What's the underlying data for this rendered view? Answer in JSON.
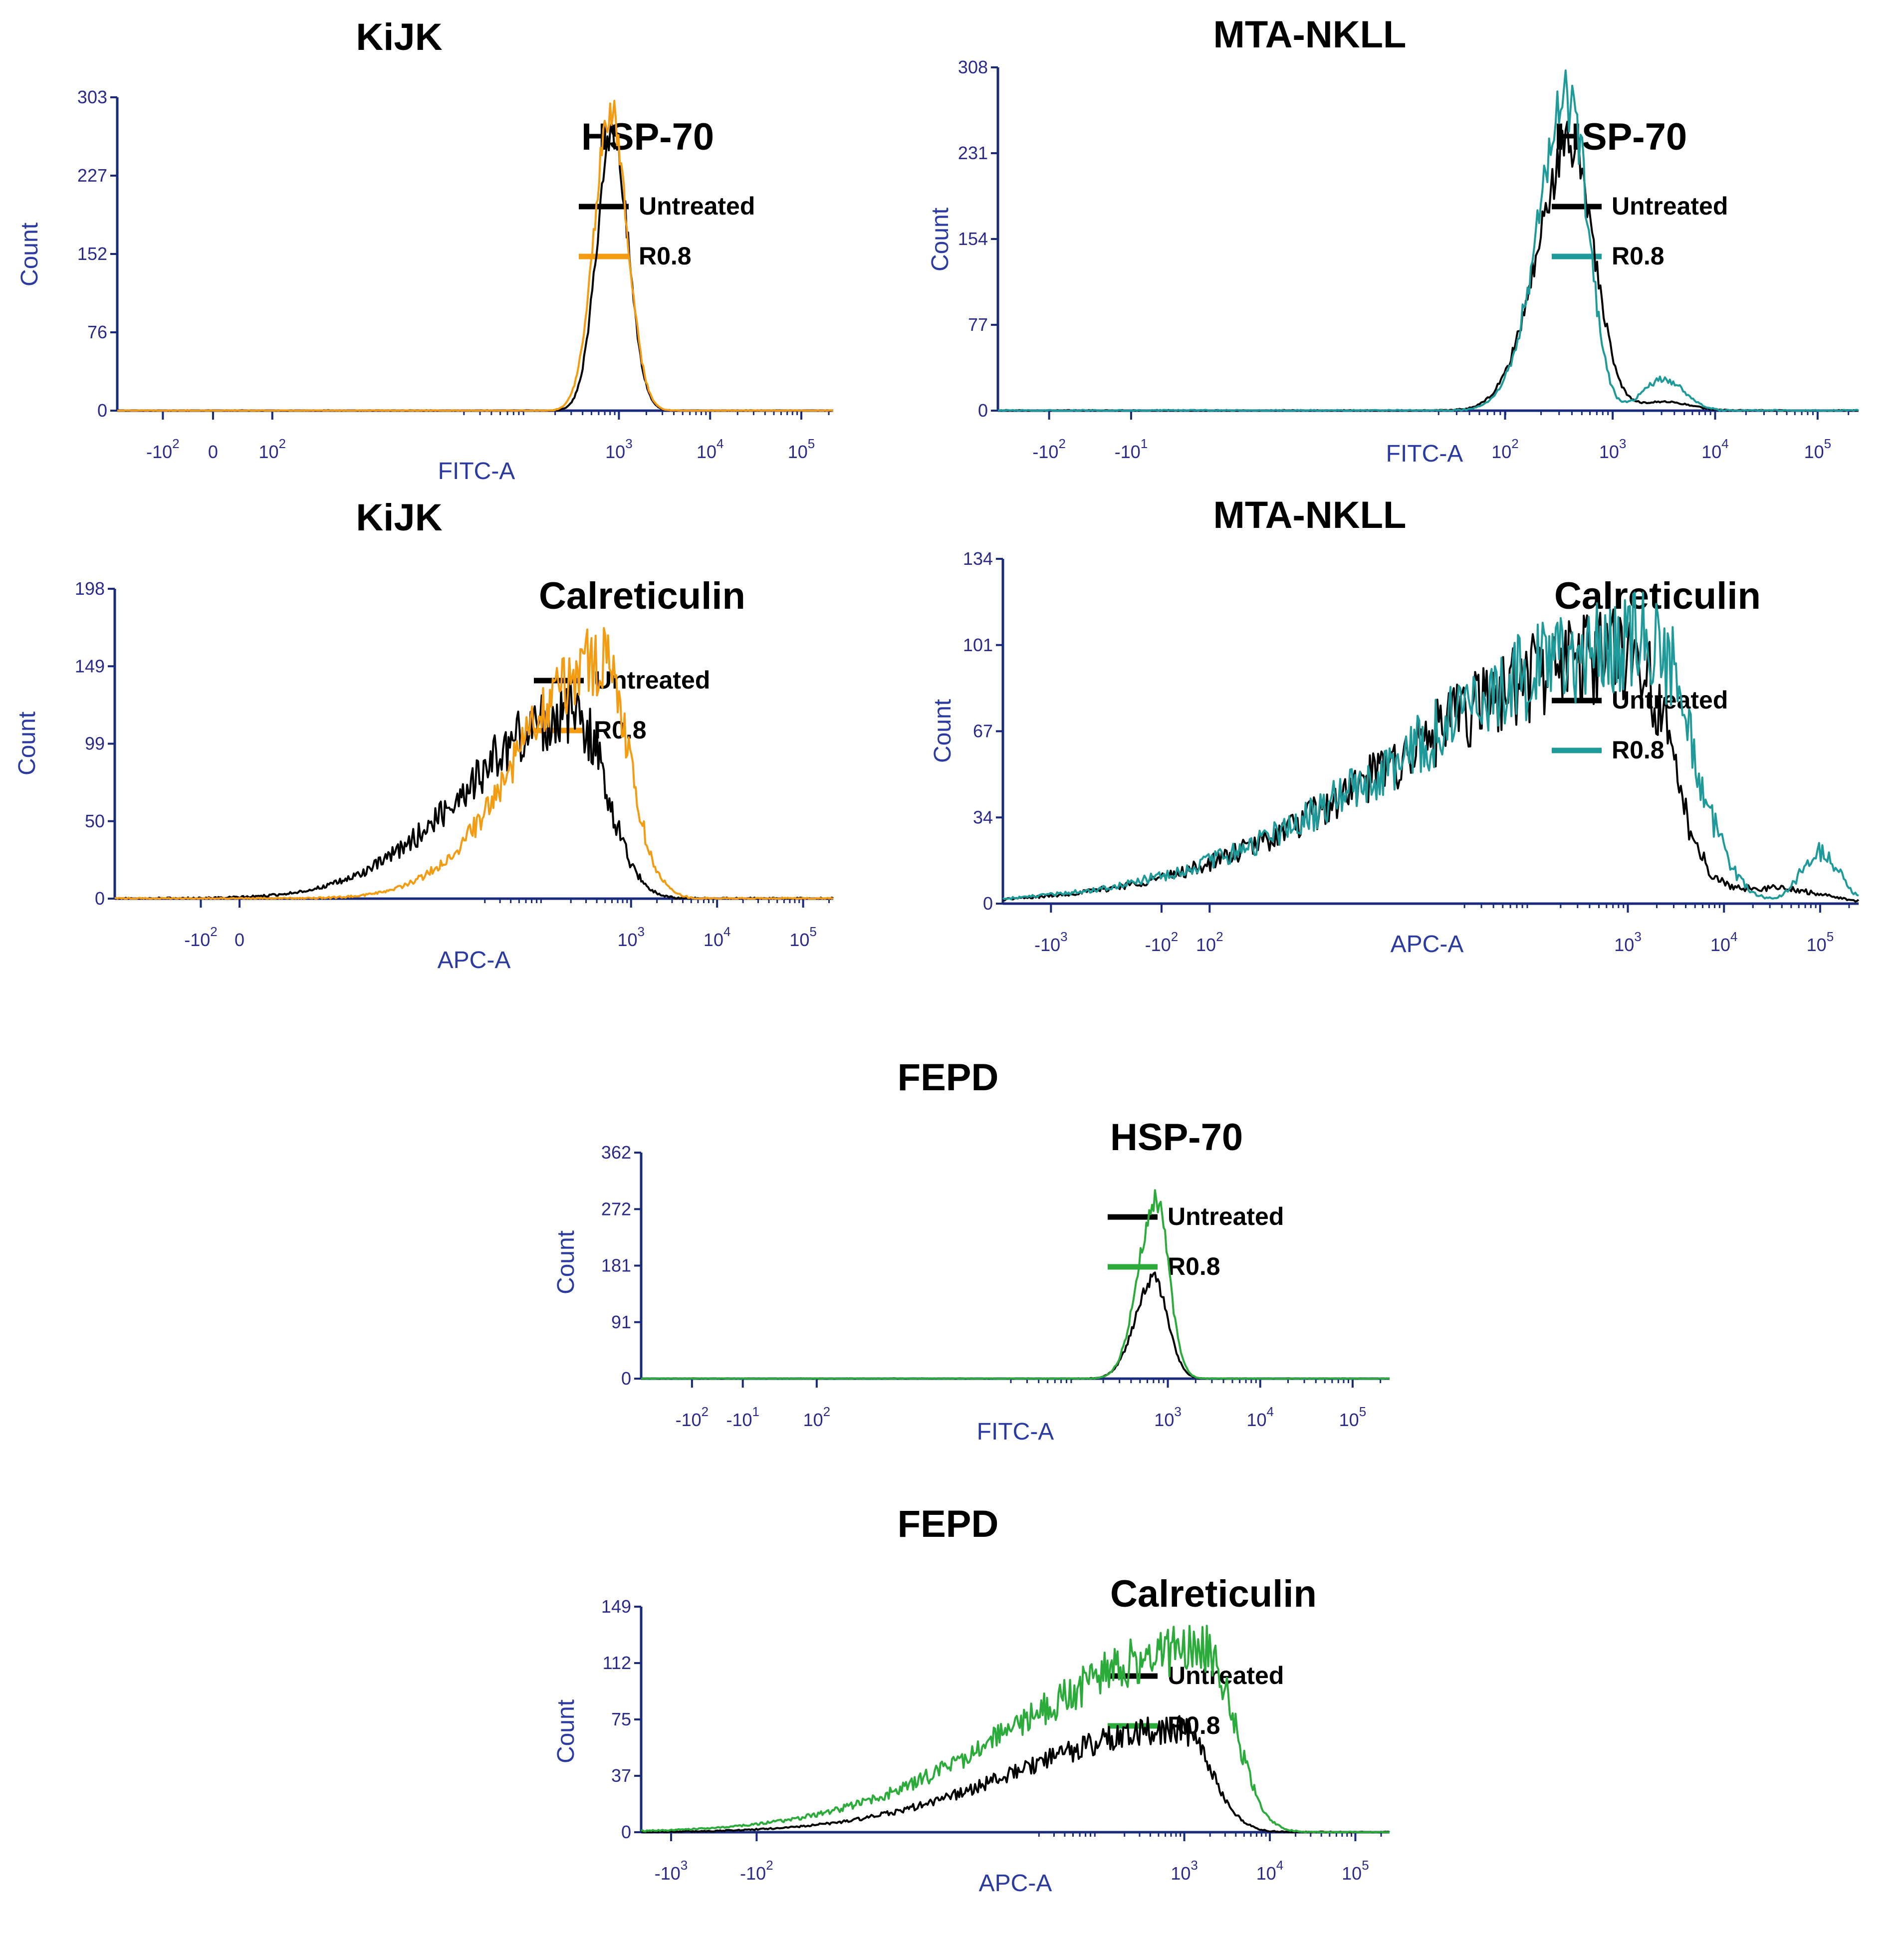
{
  "colors": {
    "untreated": "#000000",
    "orange": "#f39c12",
    "teal": "#1e9a9a",
    "green": "#2bab3a",
    "axis": "#1a2a7a",
    "tick_text": "#2a2a8a",
    "axis_label": "#2a3aa0"
  },
  "legend": {
    "untreated_label": "Untreated",
    "treated_label": "R0.8"
  },
  "chart_data": [
    {
      "id": "kijk_hsp70",
      "type": "histogram",
      "title": "KiJK",
      "marker": "HSP-70",
      "xlabel": "FITC-A",
      "ylabel": "Count",
      "ylim": [
        0,
        303
      ],
      "yticks": [
        "0",
        "76",
        "152",
        "227",
        "303"
      ],
      "xrange_log": [
        -2.5,
        5.35
      ],
      "xticks": [
        {
          "label": "-10",
          "exp": "2",
          "at": -2.0
        },
        {
          "label": "0",
          "exp": "",
          "at": -1.45
        },
        {
          "label": "10",
          "exp": "2",
          "at": -0.8
        },
        {
          "label": "10",
          "exp": "3",
          "at": 3.0
        },
        {
          "label": "10",
          "exp": "4",
          "at": 4.0
        },
        {
          "label": "10",
          "exp": "5",
          "at": 5.0
        }
      ],
      "treated_color": "orange",
      "series": [
        {
          "name": "Untreated",
          "peak_log": 2.93,
          "sigma_left": 0.17,
          "sigma_right": 0.17,
          "peak": 270,
          "noise": 0.06
        },
        {
          "name": "R0.8",
          "peak_log": 2.91,
          "sigma_left": 0.18,
          "sigma_right": 0.18,
          "peak": 292,
          "noise": 0.06
        }
      ]
    },
    {
      "id": "mta_hsp70",
      "type": "histogram",
      "title": "MTA-NKLL",
      "marker": "HSP-70",
      "xlabel": "FITC-A",
      "ylabel": "Count",
      "ylim": [
        0,
        308
      ],
      "yticks": [
        "0",
        "77",
        "154",
        "231",
        "308"
      ],
      "xrange_log": [
        -3.0,
        5.4
      ],
      "xticks": [
        {
          "label": "-10",
          "exp": "2",
          "at": -2.5
        },
        {
          "label": "-10",
          "exp": "1",
          "at": -1.7
        },
        {
          "label": "10",
          "exp": "2",
          "at": 1.95
        },
        {
          "label": "10",
          "exp": "3",
          "at": 3.0
        },
        {
          "label": "10",
          "exp": "4",
          "at": 4.0
        },
        {
          "label": "10",
          "exp": "5",
          "at": 5.0
        }
      ],
      "treated_color": "teal",
      "series": [
        {
          "name": "Untreated",
          "peak_log": 2.6,
          "sigma_left": 0.33,
          "sigma_right": 0.22,
          "peak": 240,
          "noise": 0.1,
          "bump_log": 3.5,
          "bump_sigma": 0.25,
          "bump_peak": 8
        },
        {
          "name": "R0.8",
          "peak_log": 2.58,
          "sigma_left": 0.3,
          "sigma_right": 0.18,
          "peak": 278,
          "noise": 0.12,
          "bump_log": 3.5,
          "bump_sigma": 0.2,
          "bump_peak": 28
        }
      ]
    },
    {
      "id": "kijk_calr",
      "type": "histogram",
      "title": "KiJK",
      "marker": "Calreticulin",
      "xlabel": "APC-A",
      "ylabel": "Count",
      "ylim": [
        0,
        198
      ],
      "yticks": [
        "0",
        "50",
        "99",
        "149",
        "198"
      ],
      "xrange_log": [
        -3.0,
        5.35
      ],
      "xticks": [
        {
          "label": "-10",
          "exp": "2",
          "at": -2.0
        },
        {
          "label": "0",
          "exp": "",
          "at": -1.55
        },
        {
          "label": "10",
          "exp": "3",
          "at": 3.0
        },
        {
          "label": "10",
          "exp": "4",
          "at": 4.0
        },
        {
          "label": "10",
          "exp": "5",
          "at": 5.0
        }
      ],
      "treated_color": "orange",
      "series": [
        {
          "name": "Untreated",
          "peak_log": 2.35,
          "sigma_left": 1.25,
          "sigma_right": 0.36,
          "peak": 118,
          "noise": 0.18
        },
        {
          "name": "R0.8",
          "peak_log": 2.65,
          "sigma_left": 0.95,
          "sigma_right": 0.32,
          "peak": 152,
          "noise": 0.16
        }
      ]
    },
    {
      "id": "mta_calr",
      "type": "histogram",
      "title": "MTA-NKLL",
      "marker": "Calreticulin",
      "xlabel": "APC-A",
      "ylabel": "Count",
      "ylim": [
        0,
        134
      ],
      "yticks": [
        "0",
        "34",
        "67",
        "101",
        "134"
      ],
      "xrange_log": [
        -3.5,
        5.4
      ],
      "xticks": [
        {
          "label": "-10",
          "exp": "3",
          "at": -3.0
        },
        {
          "label": "-10",
          "exp": "2",
          "at": -1.85
        },
        {
          "label": "10",
          "exp": "2",
          "at": -1.35
        },
        {
          "label": "10",
          "exp": "3",
          "at": 3.0
        },
        {
          "label": "10",
          "exp": "4",
          "at": 4.0
        },
        {
          "label": "10",
          "exp": "5",
          "at": 5.0
        }
      ],
      "treated_color": "teal",
      "series": [
        {
          "name": "Untreated",
          "peak_log": 3.05,
          "sigma_left": 2.3,
          "sigma_right": 0.38,
          "peak": 98,
          "noise": 0.2,
          "bump_log": 4.5,
          "bump_sigma": 0.5,
          "bump_peak": 6
        },
        {
          "name": "R0.8",
          "peak_log": 3.25,
          "sigma_left": 2.4,
          "sigma_right": 0.42,
          "peak": 103,
          "noise": 0.2,
          "bump_log": 5.0,
          "bump_sigma": 0.2,
          "bump_peak": 20
        }
      ]
    },
    {
      "id": "fepd_hsp70",
      "type": "histogram",
      "title": "FEPD",
      "marker": "HSP-70",
      "xlabel": "FITC-A",
      "ylabel": "Count",
      "ylim": [
        0,
        362
      ],
      "yticks": [
        "0",
        "91",
        "181",
        "272",
        "362"
      ],
      "xrange_log": [
        -2.7,
        5.4
      ],
      "xticks": [
        {
          "label": "-10",
          "exp": "2",
          "at": -2.15
        },
        {
          "label": "-10",
          "exp": "1",
          "at": -1.6
        },
        {
          "label": "10",
          "exp": "2",
          "at": -0.8
        },
        {
          "label": "10",
          "exp": "3",
          "at": 3.0
        },
        {
          "label": "10",
          "exp": "4",
          "at": 4.0
        },
        {
          "label": "10",
          "exp": "5",
          "at": 5.0
        }
      ],
      "treated_color": "green",
      "series": [
        {
          "name": "Untreated",
          "peak_log": 2.85,
          "sigma_left": 0.2,
          "sigma_right": 0.15,
          "peak": 160,
          "noise": 0.07
        },
        {
          "name": "R0.8",
          "peak_log": 2.87,
          "sigma_left": 0.19,
          "sigma_right": 0.14,
          "peak": 288,
          "noise": 0.07
        }
      ]
    },
    {
      "id": "fepd_calr",
      "type": "histogram",
      "title": "FEPD",
      "marker": "Calreticulin",
      "xlabel": "APC-A",
      "ylabel": "Count",
      "ylim": [
        0,
        149
      ],
      "yticks": [
        "0",
        "37",
        "75",
        "112",
        "149"
      ],
      "xrange_log": [
        -3.35,
        5.4
      ],
      "xticks": [
        {
          "label": "-10",
          "exp": "3",
          "at": -3.0
        },
        {
          "label": "-10",
          "exp": "2",
          "at": -2.0
        },
        {
          "label": "10",
          "exp": "3",
          "at": 3.0
        },
        {
          "label": "10",
          "exp": "4",
          "at": 4.0
        },
        {
          "label": "10",
          "exp": "5",
          "at": 5.0
        }
      ],
      "treated_color": "green",
      "series": [
        {
          "name": "Untreated",
          "peak_log": 2.95,
          "sigma_left": 1.85,
          "sigma_right": 0.35,
          "peak": 68,
          "noise": 0.14
        },
        {
          "name": "R0.8",
          "peak_log": 3.25,
          "sigma_left": 2.1,
          "sigma_right": 0.33,
          "peak": 122,
          "noise": 0.14
        }
      ]
    }
  ]
}
